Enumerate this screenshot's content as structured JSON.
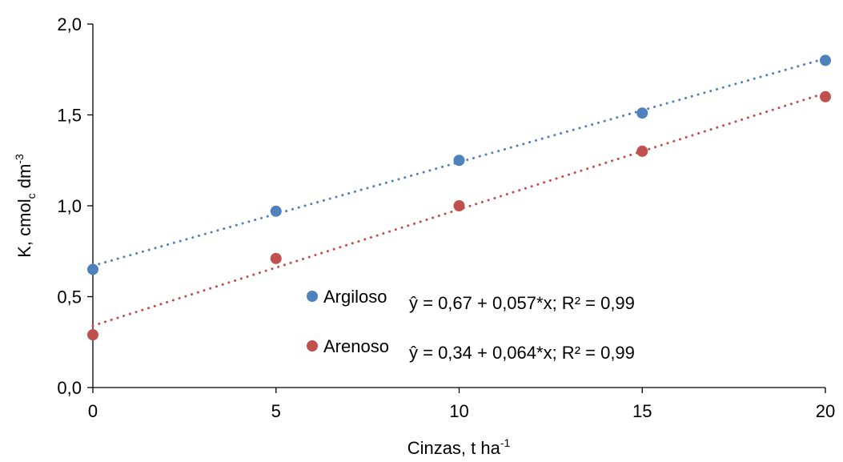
{
  "chart_data": {
    "type": "scatter",
    "xlabel": [
      "Cinzas, t ha",
      "-1"
    ],
    "ylabel": [
      "K, cmol",
      "c",
      " dm",
      "-3"
    ],
    "xlim": [
      0,
      20
    ],
    "xticks": [
      0,
      5,
      10,
      15,
      20
    ],
    "ylim": [
      0,
      2
    ],
    "yticks": [
      {
        "value": 0,
        "label": "0,0"
      },
      {
        "value": 0.5,
        "label": "0,5"
      },
      {
        "value": 1,
        "label": "1,0"
      },
      {
        "value": 1.5,
        "label": "1,5"
      },
      {
        "value": 2,
        "label": "2,0"
      }
    ],
    "grid": false,
    "series": [
      {
        "name": "Argiloso",
        "color": "#4f81bd",
        "x": [
          0,
          5,
          10,
          15,
          20
        ],
        "values": [
          0.65,
          0.97,
          1.25,
          1.51,
          1.8
        ],
        "trendline": {
          "intercept": 0.67,
          "slope": 0.057
        },
        "equation": "ŷ = 0,67 + 0,057*x; R² = 0,99"
      },
      {
        "name": "Arenoso",
        "color": "#c0504d",
        "x": [
          0,
          5,
          10,
          15,
          20
        ],
        "values": [
          0.29,
          0.71,
          1.0,
          1.3,
          1.6
        ],
        "trendline": {
          "intercept": 0.34,
          "slope": 0.064
        },
        "equation": "ŷ = 0,34 + 0,064*x; R² = 0,99"
      }
    ]
  }
}
